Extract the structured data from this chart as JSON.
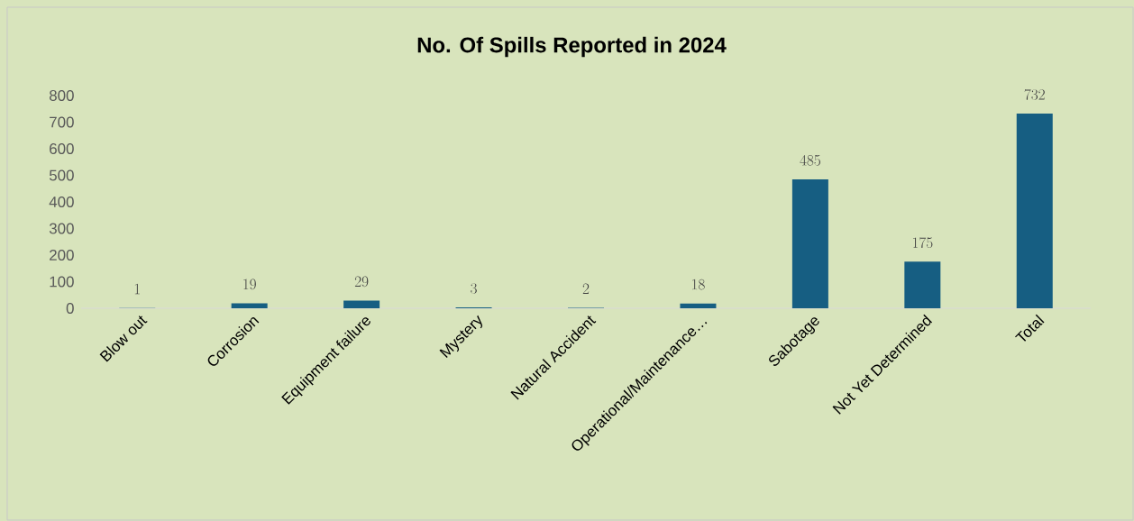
{
  "chart_data": {
    "type": "bar",
    "title": "No. Of Spills Reported in 2024",
    "categories": [
      "Blow out",
      "Corrosion",
      "Equipment failure",
      "Mystery",
      "Natural Accident",
      "Operational/Maintenance…",
      "Sabotage",
      "Not Yet Determined",
      "Total"
    ],
    "values": [
      1,
      19,
      29,
      3,
      2,
      18,
      485,
      175,
      732
    ],
    "color": "#165e82",
    "ylim": [
      0,
      800
    ],
    "yticks": [
      0,
      100,
      200,
      300,
      400,
      500,
      600,
      700,
      800
    ],
    "data_labels": true
  }
}
